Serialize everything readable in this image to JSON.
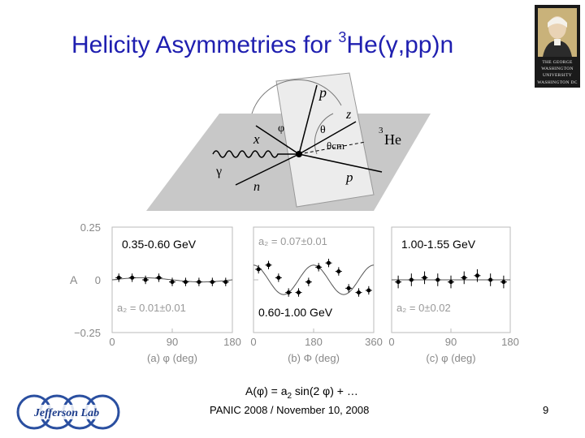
{
  "slide": {
    "title_main": "Helicity Asymmetries for ",
    "title_sup": "3",
    "title_rest": "He(γ,pp)n",
    "formula_pre": "A(φ) = a",
    "formula_sub": "2",
    "formula_post": " sin(2 φ) + …",
    "footer": "PANIC 2008 / November 10, 2008",
    "page_number": "9"
  },
  "logos": {
    "gw_line1": "THE GEORGE",
    "gw_line2": "WASHINGTON",
    "gw_line3": "UNIVERSITY",
    "gw_line4": "WASHINGTON DC",
    "jlab_text": "Jefferson Lab"
  },
  "kinematics_diagram": {
    "labels": {
      "p_top": "p",
      "z": "z",
      "theta": "θ",
      "phi": "φ",
      "x": "x",
      "theta_cm": "θcm",
      "he3_sup": "3",
      "he3": "He",
      "gamma": "γ",
      "n": "n",
      "p_bottom": "p"
    }
  },
  "chart_data": {
    "type": "scatter",
    "shared_y_label": "A",
    "ylim": [
      -0.25,
      0.25
    ],
    "y_ticks": [
      "0.25",
      "0",
      "−0.25"
    ],
    "panels": [
      {
        "label": "0.35-0.60 GeV",
        "fit_label": "a₂ = 0.01±0.01",
        "xlim": [
          0,
          180
        ],
        "x_ticks": [
          "0",
          "90",
          "180"
        ],
        "axis_caption": "(a)   φ (deg)",
        "x": [
          10,
          30,
          50,
          70,
          90,
          110,
          130,
          150,
          170
        ],
        "y": [
          0.01,
          0.01,
          0.0,
          0.01,
          -0.01,
          -0.01,
          -0.01,
          -0.01,
          -0.01
        ],
        "err": [
          0.02,
          0.02,
          0.02,
          0.02,
          0.02,
          0.02,
          0.02,
          0.02,
          0.02
        ]
      },
      {
        "label": "0.60-1.00 GeV",
        "fit_label": "a₂ = 0.07±0.01",
        "xlim": [
          0,
          360
        ],
        "x_ticks": [
          "0",
          "180",
          "360"
        ],
        "axis_caption": "(b)   Φ (deg)",
        "x": [
          15,
          45,
          75,
          105,
          135,
          165,
          195,
          225,
          255,
          285,
          315,
          345
        ],
        "y": [
          0.05,
          0.07,
          0.01,
          -0.06,
          -0.06,
          -0.01,
          0.06,
          0.08,
          0.04,
          -0.04,
          -0.06,
          -0.05
        ],
        "err": [
          0.02,
          0.02,
          0.02,
          0.02,
          0.02,
          0.02,
          0.02,
          0.02,
          0.02,
          0.02,
          0.02,
          0.02
        ]
      },
      {
        "label": "1.00-1.55 GeV",
        "fit_label": "a₂ = 0±0.02",
        "xlim": [
          0,
          180
        ],
        "x_ticks": [
          "0",
          "90",
          "180"
        ],
        "axis_caption": "(c)   φ (deg)",
        "x": [
          10,
          30,
          50,
          70,
          90,
          110,
          130,
          150,
          170
        ],
        "y": [
          -0.01,
          0.0,
          0.01,
          0.0,
          -0.01,
          0.01,
          0.02,
          0.0,
          -0.01
        ],
        "err": [
          0.03,
          0.03,
          0.03,
          0.03,
          0.03,
          0.03,
          0.03,
          0.03,
          0.03
        ]
      }
    ]
  }
}
